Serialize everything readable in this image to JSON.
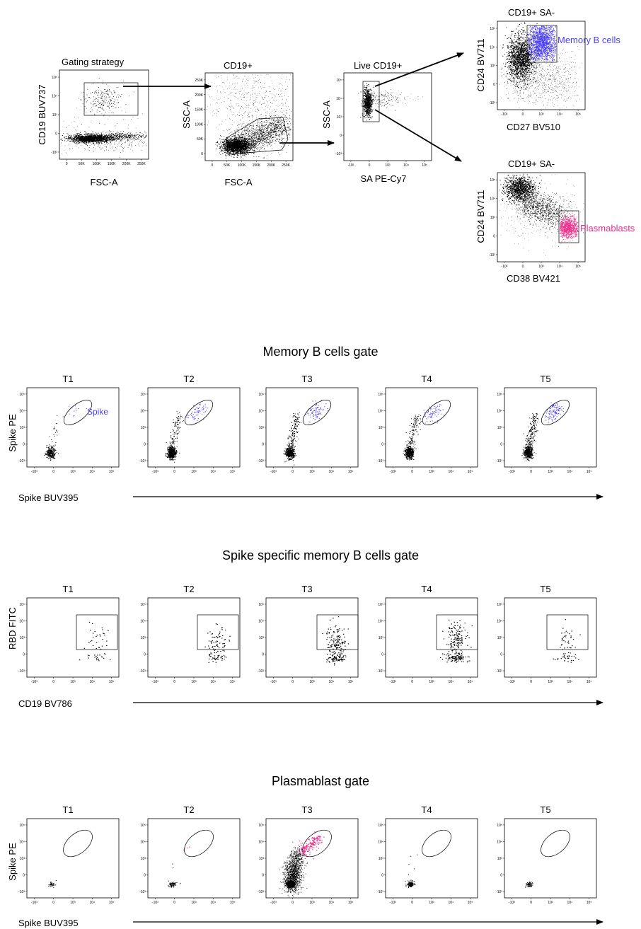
{
  "colors": {
    "points": "#000000",
    "memory": "#4a3ff5",
    "plasma": "#ee2f8c",
    "frame": "#000000"
  },
  "top": {
    "gating_label": "Gating strategy",
    "p1": {
      "xlabel": "FSC-A",
      "ylabel": "CD19 BUV737",
      "xticks": [
        "0",
        "50K",
        "100K",
        "150K",
        "200K",
        "250K"
      ],
      "yticks": [
        "-10³",
        "0",
        "10³",
        "10⁴",
        "10⁵"
      ]
    },
    "p2": {
      "title": "CD19+",
      "xlabel": "FSC-A",
      "ylabel": "SSC-A",
      "xticks": [
        "0",
        "50K",
        "100K",
        "150K",
        "200K",
        "250K"
      ],
      "yticks": [
        "0",
        "50K",
        "100K",
        "150K",
        "200K",
        "250K"
      ]
    },
    "p3": {
      "title": "Live CD19+",
      "xlabel": "SA PE-Cy7",
      "ylabel": "SSC-A",
      "xticks": [
        "-10³",
        "0",
        "10³",
        "10⁴",
        "10⁵"
      ],
      "yticks": [
        "-10³",
        "0",
        "10³",
        "10⁴",
        "10⁵"
      ]
    },
    "p4": {
      "title": "CD19+ SA-",
      "xlabel": "CD27 BV510",
      "ylabel": "CD24 BV711",
      "gate": "Memory B cells",
      "xticks": [
        "-10³",
        "0",
        "10³",
        "10⁴",
        "10⁵"
      ],
      "yticks": [
        "-10³",
        "0",
        "10³",
        "10⁴",
        "10⁵"
      ]
    },
    "p5": {
      "title": "CD19+ SA-",
      "xlabel": "CD38 BV421",
      "ylabel": "CD24 BV711",
      "gate": "Plasmablasts",
      "xticks": [
        "-10³",
        "0",
        "10³",
        "10⁴",
        "10⁵"
      ],
      "yticks": [
        "-10³",
        "0",
        "10³",
        "10⁴",
        "10⁵"
      ]
    }
  },
  "rows": [
    {
      "title": "Memory B cells gate",
      "ylabel": "Spike PE",
      "xlabel": "Spike BUV395",
      "gate_label": "Spike",
      "timepoints": [
        "T1",
        "T2",
        "T3",
        "T4",
        "T5"
      ]
    },
    {
      "title": "Spike specific memory B cells gate",
      "ylabel": "RBD FITC",
      "xlabel": "CD19 BV786",
      "timepoints": [
        "T1",
        "T2",
        "T3",
        "T4",
        "T5"
      ]
    },
    {
      "title": "Plasmablast gate",
      "ylabel": "Spike PE",
      "xlabel": "Spike BUV395",
      "timepoints": [
        "T1",
        "T2",
        "T3",
        "T4",
        "T5"
      ]
    }
  ],
  "log_ticks": [
    "-10³",
    "0",
    "10³",
    "10⁴",
    "10⁵"
  ],
  "chart_data": [
    {
      "type": "scatter",
      "panel": "Gating strategy",
      "xlabel": "FSC-A",
      "ylabel": "CD19 BUV737",
      "gate": "CD19+"
    },
    {
      "type": "scatter",
      "panel": "CD19+",
      "xlabel": "FSC-A",
      "ylabel": "SSC-A",
      "gate": "Live"
    },
    {
      "type": "scatter",
      "panel": "Live CD19+",
      "xlabel": "SA PE-Cy7",
      "ylabel": "SSC-A",
      "gate": "SA-"
    },
    {
      "type": "scatter",
      "panel": "CD19+ SA-",
      "xlabel": "CD27 BV510",
      "ylabel": "CD24 BV711",
      "gate": "Memory B cells"
    },
    {
      "type": "scatter",
      "panel": "CD19+ SA-",
      "xlabel": "CD38 BV421",
      "ylabel": "CD24 BV711",
      "gate": "Plasmablasts"
    },
    {
      "type": "scatter",
      "group": "Memory B cells gate",
      "xlabel": "Spike BUV395",
      "ylabel": "Spike PE",
      "gate": "Spike",
      "categories": [
        "T1",
        "T2",
        "T3",
        "T4",
        "T5"
      ]
    },
    {
      "type": "scatter",
      "group": "Spike specific memory B cells gate",
      "xlabel": "CD19 BV786",
      "ylabel": "RBD FITC",
      "categories": [
        "T1",
        "T2",
        "T3",
        "T4",
        "T5"
      ]
    },
    {
      "type": "scatter",
      "group": "Plasmablast gate",
      "xlabel": "Spike BUV395",
      "ylabel": "Spike PE",
      "categories": [
        "T1",
        "T2",
        "T3",
        "T4",
        "T5"
      ]
    }
  ]
}
